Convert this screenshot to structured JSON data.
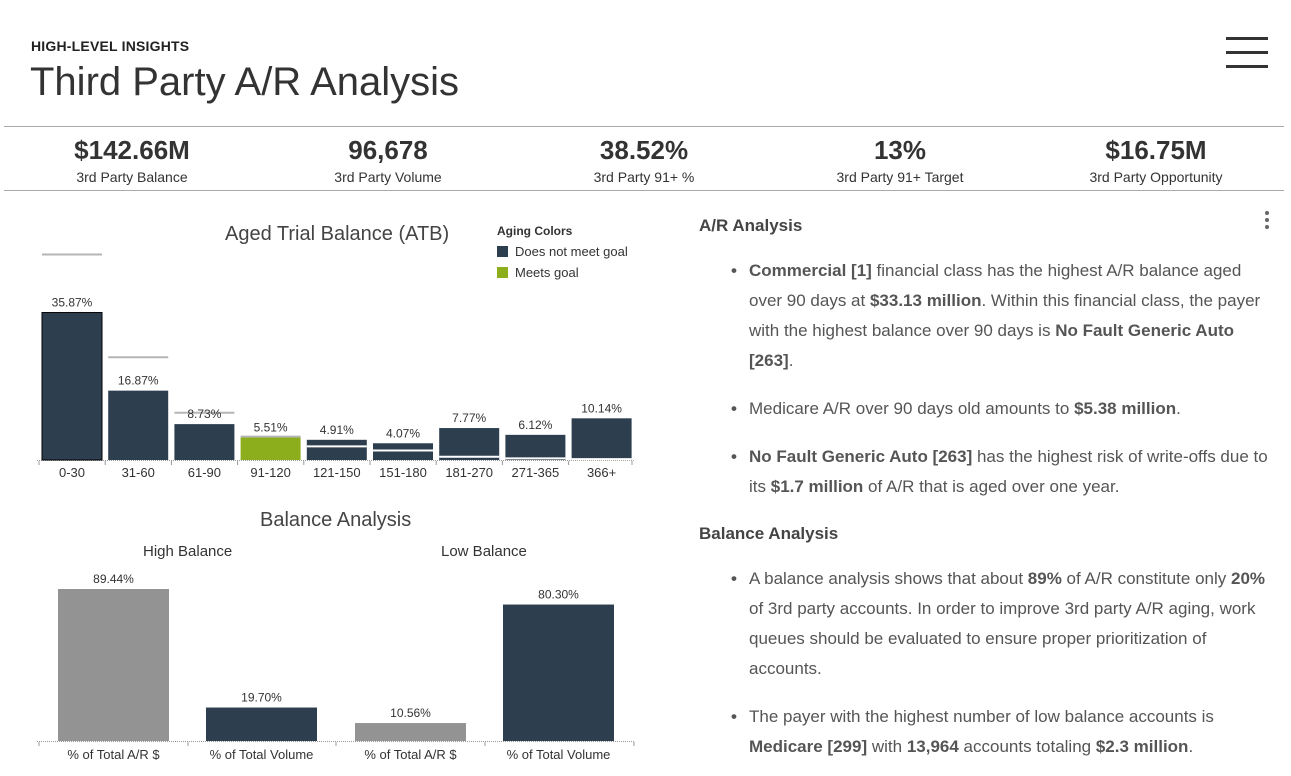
{
  "header": {
    "eyebrow": "HIGH-LEVEL INSIGHTS",
    "title": "Third Party A/R Analysis"
  },
  "kpis": [
    {
      "value": "$142.66M",
      "label": "3rd Party Balance"
    },
    {
      "value": "96,678",
      "label": "3rd Party Volume"
    },
    {
      "value": "38.52%",
      "label": "3rd Party 91+ %"
    },
    {
      "value": "13%",
      "label": "3rd Party 91+ Target"
    },
    {
      "value": "$16.75M",
      "label": "3rd Party Opportunity"
    }
  ],
  "colors": {
    "does_not_meet": "#2d3e4e",
    "meets": "#8cad1c",
    "gray_bar": "#939393",
    "goal_line": "#b5b5b5"
  },
  "atb": {
    "title": "Aged Trial Balance (ATB)",
    "legend_title": "Aging Colors",
    "legend": [
      {
        "label": "Does not meet goal",
        "color": "#2d3e4e"
      },
      {
        "label": "Meets goal",
        "color": "#8cad1c"
      }
    ]
  },
  "balance": {
    "title": "Balance Analysis",
    "high_label": "High Balance",
    "low_label": "Low Balance"
  },
  "chart_data": [
    {
      "type": "bar",
      "title": "Aged Trial Balance (ATB)",
      "categories": [
        "0-30",
        "31-60",
        "61-90",
        "91-120",
        "121-150",
        "151-180",
        "181-270",
        "271-365",
        "366+"
      ],
      "values": [
        35.87,
        16.87,
        8.73,
        5.51,
        4.91,
        4.07,
        7.77,
        6.12,
        10.14
      ],
      "value_labels": [
        "35.87%",
        "16.87%",
        "8.73%",
        "5.51%",
        "4.91%",
        "4.07%",
        "7.77%",
        "6.12%",
        "10.14%"
      ],
      "goals": [
        50,
        25,
        11.5,
        5.7,
        3.3,
        2.3,
        0.8,
        0.4,
        0.2
      ],
      "status": [
        "not_met",
        "not_met",
        "not_met",
        "met",
        "not_met",
        "not_met",
        "not_met",
        "not_met",
        "not_met"
      ],
      "ylim": [
        0,
        36
      ]
    },
    {
      "type": "bar",
      "title": "Balance Analysis",
      "categories": [
        "% of Total A/R $",
        "% of Total Volume",
        "% of Total A/R $",
        "% of Total Volume"
      ],
      "groups": [
        "High Balance",
        "High Balance",
        "Low Balance",
        "Low Balance"
      ],
      "values": [
        89.44,
        19.7,
        10.56,
        80.3
      ],
      "value_labels": [
        "89.44%",
        "19.70%",
        "10.56%",
        "80.30%"
      ],
      "colors": [
        "#939393",
        "#2d3e4e",
        "#939393",
        "#2d3e4e"
      ],
      "ylim": [
        0,
        89.44
      ]
    }
  ],
  "panel": {
    "ar_heading": "A/R Analysis",
    "ar_bullets": [
      {
        "parts": [
          {
            "t": "Commercial [1]",
            "b": true
          },
          {
            "t": " financial class has the highest A/R balance aged over 90 days at "
          },
          {
            "t": "$33.13 million",
            "b": true
          },
          {
            "t": ". Within this financial class, the payer with the highest balance over 90 days is "
          },
          {
            "t": "No Fault Generic Auto [263]",
            "b": true
          },
          {
            "t": "."
          }
        ]
      },
      {
        "parts": [
          {
            "t": "Medicare A/R over 90 days old amounts to "
          },
          {
            "t": "$5.38 million",
            "b": true
          },
          {
            "t": "."
          }
        ]
      },
      {
        "parts": [
          {
            "t": "No Fault Generic Auto [263]",
            "b": true
          },
          {
            "t": " has the highest risk of write-offs due to its "
          },
          {
            "t": "$1.7 million",
            "b": true
          },
          {
            "t": " of A/R that is aged over one year."
          }
        ]
      }
    ],
    "balance_heading": "Balance Analysis",
    "balance_bullets": [
      {
        "parts": [
          {
            "t": "A balance analysis shows that about "
          },
          {
            "t": "89%",
            "b": true
          },
          {
            "t": " of A/R constitute only "
          },
          {
            "t": "20%",
            "b": true
          },
          {
            "t": " of 3rd party accounts. In order to improve 3rd party A/R aging, work queues should be evaluated to ensure proper prioritization of accounts."
          }
        ]
      },
      {
        "parts": [
          {
            "t": "The payer with the highest number of low balance accounts is "
          },
          {
            "t": "Medicare [299]",
            "b": true
          },
          {
            "t": " with "
          },
          {
            "t": "13,964",
            "b": true
          },
          {
            "t": " accounts totaling "
          },
          {
            "t": "$2.3 million",
            "b": true
          },
          {
            "t": "."
          }
        ]
      }
    ]
  }
}
